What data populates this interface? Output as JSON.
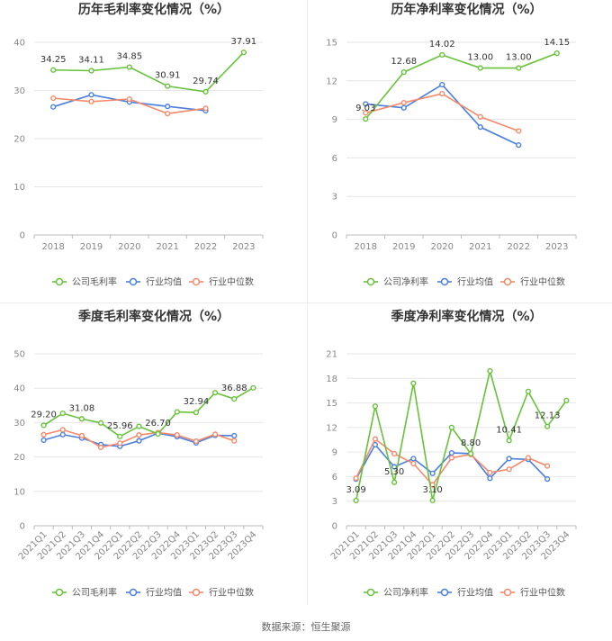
{
  "source_label": "数据来源：恒生聚源",
  "colors": {
    "company": "#67c23a",
    "avg": "#4a7fe0",
    "median": "#f5896b",
    "grid": "#e6e6e6",
    "axis": "#888888",
    "text": "#333333"
  },
  "chart_data": [
    {
      "id": "annual-gross",
      "type": "line",
      "title": "历年毛利率变化情况（%）",
      "categories": [
        "2018",
        "2019",
        "2020",
        "2021",
        "2022",
        "2023"
      ],
      "ylim": [
        0,
        40
      ],
      "yticks": [
        "0",
        "10",
        "20",
        "30",
        "40"
      ],
      "grid": true,
      "legend_position": "bottom",
      "series": [
        {
          "name": "公司毛利率",
          "key": "company",
          "values": [
            34.25,
            34.11,
            34.85,
            30.91,
            29.74,
            37.91
          ],
          "labels": [
            "34.25",
            "34.11",
            "34.85",
            "30.91",
            "29.74",
            "37.91"
          ]
        },
        {
          "name": "行业均值",
          "key": "avg",
          "values": [
            26.6,
            29.1,
            27.6,
            26.7,
            25.8,
            null
          ],
          "labels": []
        },
        {
          "name": "行业中位数",
          "key": "median",
          "values": [
            28.4,
            27.7,
            28.2,
            25.2,
            26.3,
            null
          ],
          "labels": []
        }
      ]
    },
    {
      "id": "annual-net",
      "type": "line",
      "title": "历年净利率变化情况（%）",
      "categories": [
        "2018",
        "2019",
        "2020",
        "2021",
        "2022",
        "2023"
      ],
      "ylim": [
        0,
        15
      ],
      "yticks": [
        "0",
        "3",
        "6",
        "9",
        "12",
        "15"
      ],
      "grid": true,
      "legend_position": "bottom",
      "series": [
        {
          "name": "公司净利率",
          "key": "company",
          "values": [
            9.03,
            12.68,
            14.02,
            13.0,
            13.0,
            14.15
          ],
          "labels": [
            "9.03",
            "12.68",
            "14.02",
            "13.00",
            "13.00",
            "14.15"
          ]
        },
        {
          "name": "行业均值",
          "key": "avg",
          "values": [
            10.2,
            9.9,
            11.7,
            8.4,
            7.0,
            null
          ],
          "labels": []
        },
        {
          "name": "行业中位数",
          "key": "median",
          "values": [
            9.5,
            10.3,
            11.0,
            9.2,
            8.1,
            null
          ],
          "labels": []
        }
      ]
    },
    {
      "id": "quarterly-gross",
      "type": "line",
      "title": "季度毛利率变化情况（%）",
      "categories": [
        "2021Q1",
        "2021Q2",
        "2021Q3",
        "2021Q4",
        "2022Q1",
        "2022Q2",
        "2022Q3",
        "2022Q4",
        "2023Q1",
        "2023Q2",
        "2023Q3",
        "2023Q4"
      ],
      "ylim": [
        0,
        50
      ],
      "yticks": [
        "0",
        "10",
        "20",
        "30",
        "40",
        "50"
      ],
      "grid": true,
      "legend_position": "bottom",
      "series": [
        {
          "name": "公司毛利率",
          "key": "company",
          "values": [
            29.2,
            32.7,
            31.08,
            29.9,
            25.96,
            28.9,
            26.7,
            33.1,
            32.94,
            38.7,
            36.88,
            40.1
          ],
          "labels": [
            "29.20",
            "",
            "31.08",
            "",
            "25.96",
            "",
            "26.70",
            "",
            "32.94",
            "",
            "36.88",
            ""
          ]
        },
        {
          "name": "行业均值",
          "key": "avg",
          "values": [
            24.9,
            26.5,
            25.5,
            23.6,
            23.1,
            24.7,
            26.9,
            25.9,
            24.1,
            26.3,
            26.2,
            null
          ],
          "labels": []
        },
        {
          "name": "行业中位数",
          "key": "median",
          "values": [
            26.5,
            27.9,
            26.2,
            22.8,
            24.0,
            26.4,
            27.1,
            26.4,
            24.6,
            26.6,
            24.7,
            null
          ],
          "labels": []
        }
      ]
    },
    {
      "id": "quarterly-net",
      "type": "line",
      "title": "季度净利率变化情况（%）",
      "categories": [
        "2021Q1",
        "2021Q2",
        "2021Q3",
        "2021Q4",
        "2022Q1",
        "2022Q2",
        "2022Q3",
        "2022Q4",
        "2023Q1",
        "2023Q2",
        "2023Q3",
        "2023Q4"
      ],
      "ylim": [
        0,
        21
      ],
      "yticks": [
        "0",
        "3",
        "6",
        "9",
        "12",
        "15",
        "18",
        "21"
      ],
      "grid": true,
      "legend_position": "bottom",
      "series": [
        {
          "name": "公司净利率",
          "key": "company",
          "values": [
            3.09,
            14.6,
            5.3,
            17.4,
            3.1,
            12.0,
            8.8,
            18.9,
            10.41,
            16.4,
            12.13,
            15.3
          ],
          "labels": [
            "3.09",
            "",
            "5.30",
            "",
            "3.10",
            "",
            "8.80",
            "",
            "10.41",
            "",
            "12.13",
            ""
          ]
        },
        {
          "name": "行业均值",
          "key": "avg",
          "values": [
            5.7,
            9.9,
            7.2,
            8.2,
            6.4,
            8.9,
            8.8,
            5.8,
            8.2,
            8.1,
            5.7,
            null
          ],
          "labels": []
        },
        {
          "name": "行业中位数",
          "key": "median",
          "values": [
            5.8,
            10.6,
            8.8,
            7.6,
            5.0,
            8.3,
            8.7,
            6.5,
            6.9,
            8.3,
            7.3,
            null
          ],
          "labels": []
        }
      ]
    }
  ]
}
